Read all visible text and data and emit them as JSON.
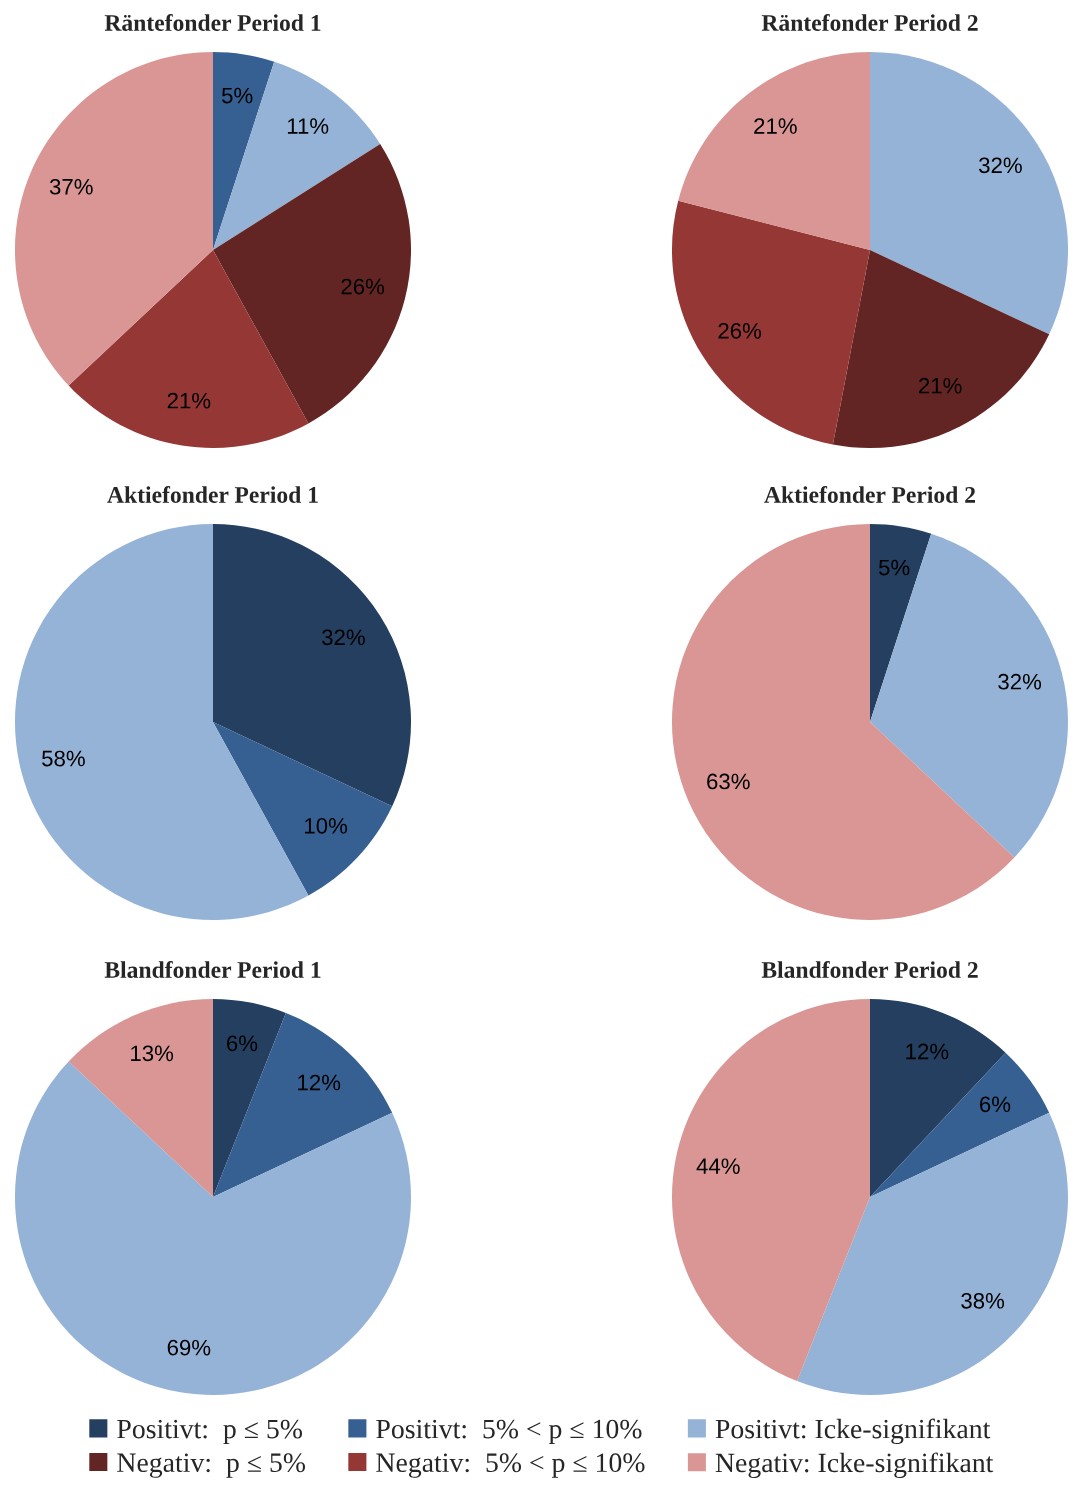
{
  "chart_data": [
    {
      "type": "pie",
      "title": "Räntefonder Period 1",
      "categories": [
        "Positivt:  p ≤ 5%",
        "Positivt:  5% < p ≤ 10%",
        "Positivt: Icke-signifikant",
        "Negativ:  p ≤ 5%",
        "Negativ:  5% < p ≤ 10%",
        "Negativ: Icke-signifikant"
      ],
      "values": [
        null,
        5,
        11,
        26,
        21,
        37
      ],
      "value_labels": [
        null,
        "5%",
        "11%",
        "26%",
        "21%",
        "37%"
      ],
      "colors": [
        "#243f60",
        "#366092",
        "#95b3d7",
        "#632523",
        "#953735",
        "#d99694"
      ],
      "legend": "bottom"
    },
    {
      "type": "pie",
      "title": "Räntefonder Period 2",
      "categories": [
        null,
        null,
        null,
        null,
        null,
        null
      ],
      "values": [
        null,
        null,
        32,
        21,
        26,
        21
      ],
      "value_labels": [
        null,
        null,
        "32%",
        "21%",
        "26%",
        "21%"
      ],
      "colors": [
        "#243f60",
        "#366092",
        "#95b3d7",
        "#632523",
        "#953735",
        "#d99694"
      ]
    },
    {
      "type": "pie",
      "title": "Aktiefonder Period 1",
      "categories": [
        null,
        null,
        null,
        null,
        null,
        null
      ],
      "values": [
        32,
        10,
        58,
        null,
        null,
        null
      ],
      "value_labels": [
        "32%",
        "10%",
        "58%",
        null,
        null,
        null
      ],
      "colors": [
        "#243f60",
        "#366092",
        "#95b3d7",
        "#632523",
        "#953735",
        "#d99694"
      ]
    },
    {
      "type": "pie",
      "title": "Aktiefonder Period 2",
      "categories": [
        null,
        null,
        null,
        null,
        null,
        null
      ],
      "values": [
        5,
        null,
        32,
        null,
        null,
        63
      ],
      "value_labels": [
        "5%",
        null,
        "32%",
        null,
        null,
        "63%"
      ],
      "colors": [
        "#243f60",
        "#366092",
        "#95b3d7",
        "#632523",
        "#953735",
        "#d99694"
      ]
    },
    {
      "type": "pie",
      "title": "Blandfonder Period 1",
      "categories": [
        null,
        null,
        null,
        null,
        null,
        null
      ],
      "values": [
        6,
        12,
        69,
        null,
        null,
        13
      ],
      "value_labels": [
        "6%",
        "12%",
        "69%",
        null,
        null,
        "13%"
      ],
      "colors": [
        "#243f60",
        "#366092",
        "#95b3d7",
        "#632523",
        "#953735",
        "#d99694"
      ]
    },
    {
      "type": "pie",
      "title": "Blandfonder Period 2",
      "categories": [
        null,
        null,
        null,
        null,
        null,
        null
      ],
      "values": [
        12,
        6,
        38,
        null,
        null,
        44
      ],
      "value_labels": [
        "12%",
        "6%",
        "38%",
        null,
        null,
        "44%"
      ],
      "colors": [
        "#243f60",
        "#366092",
        "#95b3d7",
        "#632523",
        "#953735",
        "#d99694"
      ]
    }
  ]
}
